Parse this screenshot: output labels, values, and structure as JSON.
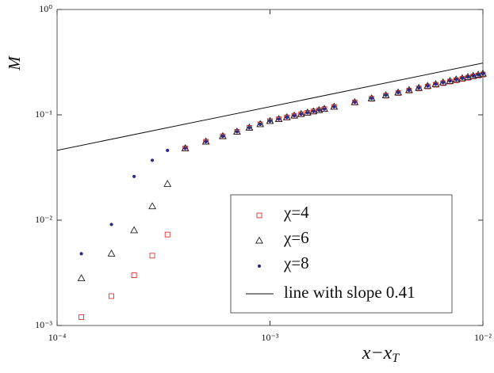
{
  "chart_data": {
    "type": "scatter",
    "xlabel": {
      "text": "x−x",
      "sub": "T"
    },
    "ylabel": "M",
    "xscale": "log",
    "yscale": "log",
    "xlim": [
      0.0001,
      0.01
    ],
    "ylim": [
      0.001,
      1
    ],
    "xticks": [
      {
        "value": 0.0001,
        "label": "10⁻⁴"
      },
      {
        "value": 0.001,
        "label": "10⁻³"
      },
      {
        "value": 0.01,
        "label": "10⁻²"
      }
    ],
    "yticks": [
      {
        "value": 0.001,
        "label": "10⁻³"
      },
      {
        "value": 0.01,
        "label": "10⁻²"
      },
      {
        "value": 0.1,
        "label": "10⁻¹"
      },
      {
        "value": 1,
        "label": "10⁰"
      }
    ],
    "legend": "lower right",
    "x": [
      0.00013,
      0.00018,
      0.00023,
      0.00028,
      0.00033,
      0.0004,
      0.0005,
      0.0006,
      0.0007,
      0.0008,
      0.0009,
      0.001,
      0.0011,
      0.0012,
      0.0013,
      0.0014,
      0.0015,
      0.0016,
      0.0017,
      0.0018,
      0.002,
      0.0025,
      0.003,
      0.0035,
      0.004,
      0.0045,
      0.005,
      0.0055,
      0.006,
      0.0065,
      0.007,
      0.0075,
      0.008,
      0.0085,
      0.009,
      0.0095,
      0.01
    ],
    "series": [
      {
        "name": "χ=4",
        "marker": "square",
        "color": "#e03030",
        "values": [
          0.0012,
          0.0019,
          0.003,
          0.0046,
          0.0073,
          0.048,
          0.0555,
          0.0625,
          0.069,
          0.0753,
          0.0813,
          0.0871,
          0.0908,
          0.0945,
          0.098,
          0.1014,
          0.1045,
          0.1076,
          0.1106,
          0.1135,
          0.119,
          0.131,
          0.142,
          0.152,
          0.161,
          0.17,
          0.178,
          0.186,
          0.193,
          0.2,
          0.207,
          0.213,
          0.219,
          0.225,
          0.231,
          0.236,
          0.241
        ]
      },
      {
        "name": "χ=6",
        "marker": "triangle",
        "color": "#222222",
        "values": [
          0.0028,
          0.0048,
          0.008,
          0.0135,
          0.022,
          0.048,
          0.0555,
          0.0625,
          0.069,
          0.0753,
          0.0813,
          0.0871,
          0.0908,
          0.0945,
          0.098,
          0.1014,
          0.1045,
          0.1076,
          0.1106,
          0.1135,
          0.119,
          0.1315,
          0.1428,
          0.153,
          0.1626,
          0.1714,
          0.1798,
          0.1876,
          0.195,
          0.2022,
          0.209,
          0.2157,
          0.222,
          0.228,
          0.234,
          0.2397,
          0.2455
        ]
      },
      {
        "name": "χ=8",
        "marker": "dot",
        "color": "#2b2b8c",
        "values": [
          0.0048,
          0.0091,
          0.026,
          0.037,
          0.046,
          0.048,
          0.0555,
          0.0625,
          0.069,
          0.0753,
          0.0813,
          0.0871,
          0.0908,
          0.0945,
          0.098,
          0.1014,
          0.1045,
          0.1076,
          0.1106,
          0.1135,
          0.119,
          0.1315,
          0.1428,
          0.153,
          0.1626,
          0.1714,
          0.1798,
          0.1876,
          0.195,
          0.2022,
          0.209,
          0.2157,
          0.222,
          0.228,
          0.234,
          0.2397,
          0.2455
        ]
      },
      {
        "name": "line with slope 0.41",
        "marker": "line",
        "color": "#111111",
        "x": [
          0.0001,
          0.01
        ],
        "values": [
          0.046,
          0.31
        ]
      }
    ]
  }
}
